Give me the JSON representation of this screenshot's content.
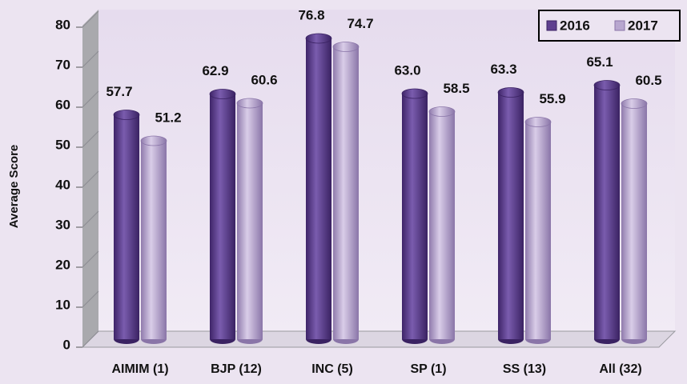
{
  "chart_data": {
    "type": "bar3d",
    "ylabel": "Average Score",
    "categories": [
      "AIMIM (1)",
      "BJP (12)",
      "INC (5)",
      "SP (1)",
      "SS (13)",
      "All (32)"
    ],
    "series": [
      {
        "name": "2016",
        "color": "#5e3f8f",
        "values": [
          57.7,
          62.9,
          76.8,
          63.0,
          63.3,
          65.1
        ],
        "value_labels": [
          "57.7",
          "62.9",
          "76.8",
          "63.0",
          "63.3",
          "65.1"
        ]
      },
      {
        "name": "2017",
        "color": "#b8a7cf",
        "values": [
          51.2,
          60.6,
          74.7,
          58.5,
          55.9,
          60.5
        ],
        "value_labels": [
          "51.2",
          "60.6",
          "74.7",
          "58.5",
          "55.9",
          "60.5"
        ]
      }
    ],
    "ylim": [
      0,
      80
    ],
    "yticks": [
      0,
      10,
      20,
      30,
      40,
      50,
      60,
      70,
      80
    ],
    "grid": true,
    "legend": "top-right"
  }
}
